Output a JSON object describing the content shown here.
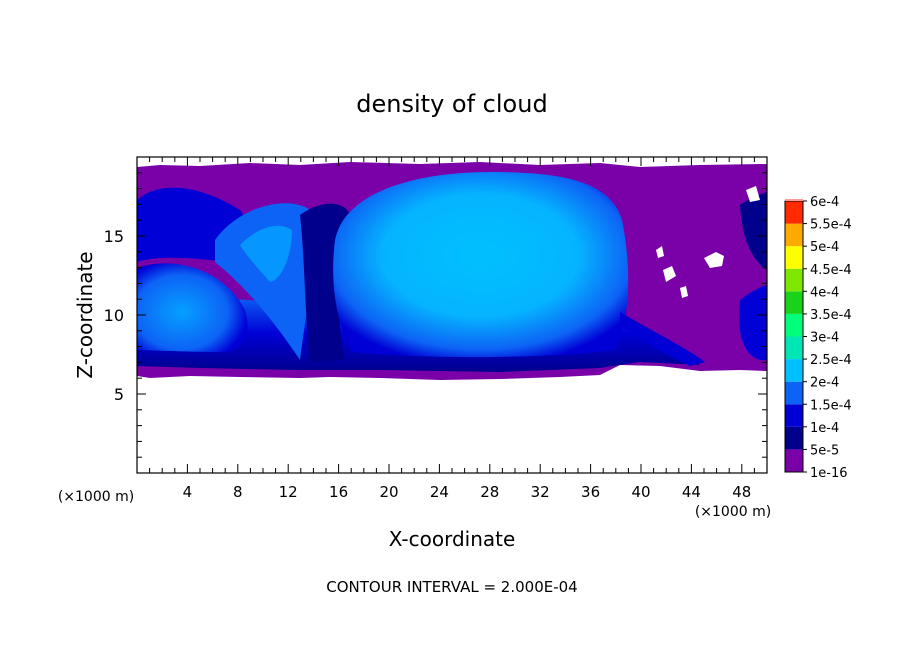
{
  "chart_data": {
    "type": "heatmap",
    "title": "density of cloud",
    "xlabel": "X-coordinate",
    "ylabel": "Z-coordinate",
    "x_unit": "(×1000 m)",
    "z_unit": "(×1000 m)",
    "xlim": [
      0,
      50
    ],
    "ylim": [
      0,
      20
    ],
    "x_ticks": [
      4,
      8,
      12,
      16,
      20,
      24,
      28,
      32,
      36,
      40,
      44,
      48
    ],
    "x_tick_labels": [
      "4",
      "8",
      "12",
      "16",
      "20",
      "24",
      "28",
      "32",
      "36",
      "40",
      "44",
      "48"
    ],
    "y_ticks": [
      5,
      10,
      15
    ],
    "y_tick_labels": [
      "5",
      "10",
      "15"
    ],
    "footer": "CONTOUR INTERVAL = 2.000E-04",
    "colorbar": {
      "labels": [
        "1e-16",
        "5e-5",
        "1e-4",
        "1.5e-4",
        "2e-4",
        "2.5e-4",
        "3e-4",
        "3.5e-4",
        "4e-4",
        "4.5e-4",
        "5e-4",
        "5.5e-4",
        "6e-4"
      ],
      "values": [
        1e-16,
        5e-05,
        0.0001,
        0.00015,
        0.0002,
        0.00025,
        0.0003,
        0.00035,
        0.0004,
        0.00045,
        0.0005,
        0.00055,
        0.0006
      ],
      "colors": [
        "#7a00a8",
        "#00008c",
        "#0000d6",
        "#0d63f5",
        "#00c0ff",
        "#00e6b4",
        "#00ff7a",
        "#1ad21a",
        "#7fe600",
        "#ffff00",
        "#ffaa00",
        "#ff2a00",
        "#ff9a9a"
      ]
    },
    "cloud_base_z": 6.3,
    "cloud_top_z": 19.2
  }
}
